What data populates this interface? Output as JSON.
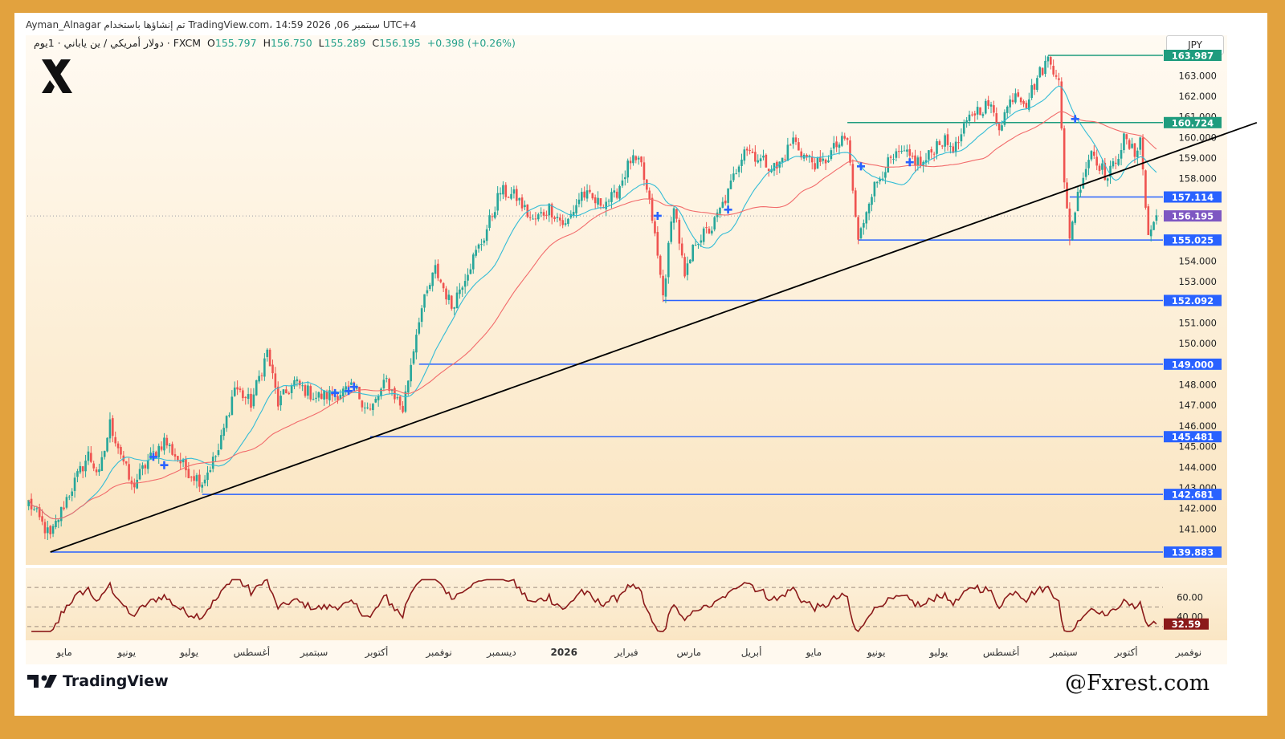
{
  "header": {
    "author_line": "Ayman_Alnagar تم إنشاؤها باستخدام TradingView.com، 14:59 2026 ,06 سبتمبر UTC+4",
    "symbol_line": "دولار أمريكي / ين ياباني · 1يوم · FXCM",
    "ohlc": {
      "o_label": "O",
      "o": "155.797",
      "h_label": "H",
      "h": "156.750",
      "l_label": "L",
      "l": "155.289",
      "c_label": "C",
      "c": "156.195",
      "change": "+0.398 (+0.26%)"
    },
    "currency": "JPY"
  },
  "branding": {
    "platform_logo_text": "TradingView",
    "watermark": "@Fxrest.com",
    "logo_icon": "x-logo-icon"
  },
  "colors": {
    "frame": "#e2a23e",
    "up": "#26a69a",
    "down": "#ef5350",
    "ma_fast": "#33bcd6",
    "ma_slow": "#f26b6b",
    "level_blue": "#2962ff",
    "level_green": "#1f9c7e",
    "trendline": "#000000",
    "rsi_line": "#8b1a1a",
    "current_price": "#7e57c2"
  },
  "chart_data": {
    "type": "candlestick",
    "title": "دولار أمريكي / ين ياباني · 1يوم · FXCM",
    "y_axis": {
      "ylim": [
        139.0,
        164.4
      ],
      "ticks": [
        "141.000",
        "142.000",
        "143.000",
        "144.000",
        "145.000",
        "146.000",
        "147.000",
        "148.000",
        "150.000",
        "151.000",
        "153.000",
        "154.000",
        "158.000",
        "159.000",
        "160.000",
        "161.000",
        "162.000",
        "163.000"
      ]
    },
    "x_axis": {
      "labels": [
        "مايو",
        "يونيو",
        "يوليو",
        "أغسطس",
        "سبتمبر",
        "أكتوبر",
        "نوفمبر",
        "ديسمبر",
        "2026",
        "فبراير",
        "مارس",
        "أبريل",
        "مايو",
        "يونيو",
        "يوليو",
        "أغسطس",
        "سبتمبر",
        "أكتوبر",
        "نوفمبر"
      ]
    },
    "waypoints": [
      [
        0,
        142.3
      ],
      [
        8,
        140.6
      ],
      [
        14,
        142.5
      ],
      [
        22,
        144.6
      ],
      [
        26,
        143.6
      ],
      [
        30,
        146.1
      ],
      [
        34,
        144.7
      ],
      [
        38,
        143.0
      ],
      [
        44,
        144.3
      ],
      [
        50,
        145.3
      ],
      [
        58,
        143.9
      ],
      [
        64,
        143.3
      ],
      [
        70,
        144.8
      ],
      [
        76,
        147.9
      ],
      [
        82,
        147.1
      ],
      [
        88,
        149.6
      ],
      [
        92,
        147.1
      ],
      [
        98,
        148.1
      ],
      [
        106,
        147.4
      ],
      [
        114,
        147.6
      ],
      [
        120,
        147.8
      ],
      [
        126,
        146.7
      ],
      [
        132,
        148.2
      ],
      [
        138,
        146.8
      ],
      [
        144,
        151.3
      ],
      [
        150,
        153.6
      ],
      [
        156,
        151.8
      ],
      [
        162,
        153.6
      ],
      [
        168,
        155.2
      ],
      [
        174,
        157.4
      ],
      [
        180,
        157.1
      ],
      [
        186,
        155.9
      ],
      [
        192,
        156.6
      ],
      [
        198,
        155.7
      ],
      [
        204,
        157.3
      ],
      [
        210,
        156.8
      ],
      [
        216,
        157.1
      ],
      [
        222,
        158.9
      ],
      [
        226,
        158.6
      ],
      [
        230,
        156.1
      ],
      [
        234,
        152.3
      ],
      [
        238,
        156.9
      ],
      [
        242,
        153.1
      ],
      [
        246,
        155.0
      ],
      [
        252,
        155.6
      ],
      [
        258,
        157.3
      ],
      [
        264,
        159.6
      ],
      [
        270,
        158.9
      ],
      [
        276,
        158.5
      ],
      [
        282,
        159.9
      ],
      [
        286,
        159.1
      ],
      [
        292,
        158.6
      ],
      [
        298,
        159.6
      ],
      [
        302,
        159.9
      ],
      [
        306,
        154.9
      ],
      [
        310,
        157.1
      ],
      [
        316,
        158.6
      ],
      [
        322,
        159.2
      ],
      [
        330,
        158.7
      ],
      [
        336,
        159.9
      ],
      [
        342,
        159.5
      ],
      [
        348,
        161.2
      ],
      [
        354,
        161.6
      ],
      [
        358,
        160.6
      ],
      [
        364,
        162.3
      ],
      [
        368,
        161.7
      ],
      [
        372,
        162.9
      ],
      [
        376,
        163.8
      ],
      [
        380,
        163.0
      ],
      [
        382,
        157.6
      ],
      [
        384,
        155.3
      ],
      [
        388,
        157.8
      ],
      [
        392,
        159.4
      ],
      [
        398,
        158.0
      ],
      [
        404,
        159.9
      ],
      [
        408,
        159.2
      ],
      [
        410,
        160.1
      ],
      [
        412,
        156.6
      ],
      [
        413,
        155.3
      ],
      [
        415,
        155.8
      ],
      [
        416,
        156.2
      ]
    ],
    "moving_averages": [
      {
        "name": "ma-fast",
        "period": 20,
        "color": "#33bcd6"
      },
      {
        "name": "ma-slow",
        "period": 50,
        "color": "#f26b6b"
      }
    ],
    "horizontal_levels": [
      {
        "price": 163.987,
        "label": "163.987",
        "color": "#1f9c7e",
        "start_bar": 376
      },
      {
        "price": 160.724,
        "label": "160.724",
        "color": "#1f9c7e",
        "start_bar": 302
      },
      {
        "price": 157.114,
        "label": "157.114",
        "color": "#2962ff",
        "start_bar": 384
      },
      {
        "price": 155.025,
        "label": "155.025",
        "color": "#2962ff",
        "start_bar": 306
      },
      {
        "price": 152.092,
        "label": "152.092",
        "color": "#2962ff",
        "start_bar": 234
      },
      {
        "price": 149.0,
        "label": "149.000",
        "color": "#2962ff",
        "start_bar": 144
      },
      {
        "price": 145.481,
        "label": "145.481",
        "color": "#2962ff",
        "start_bar": 126
      },
      {
        "price": 142.681,
        "label": "142.681",
        "color": "#2962ff",
        "start_bar": 64
      },
      {
        "price": 139.883,
        "label": "139.883",
        "color": "#2962ff",
        "start_bar": 8
      }
    ],
    "trendline": {
      "from": [
        8,
        139.883
      ],
      "to": [
        453,
        160.724
      ]
    },
    "current_price": {
      "price": 156.195,
      "label": "156.195"
    },
    "cross_markers": [
      [
        46,
        144.5
      ],
      [
        50,
        144.1
      ],
      [
        113,
        147.6
      ],
      [
        118,
        147.7
      ],
      [
        120,
        147.9
      ],
      [
        232,
        156.2
      ],
      [
        258,
        156.5
      ],
      [
        307,
        158.6
      ],
      [
        325,
        158.8
      ],
      [
        386,
        160.9
      ]
    ],
    "rsi": {
      "label": "32.59",
      "value": 32.59,
      "ylim": [
        20,
        80
      ],
      "levels": [
        70,
        50,
        30
      ],
      "ticks": [
        "60.00",
        "40.00"
      ]
    }
  }
}
